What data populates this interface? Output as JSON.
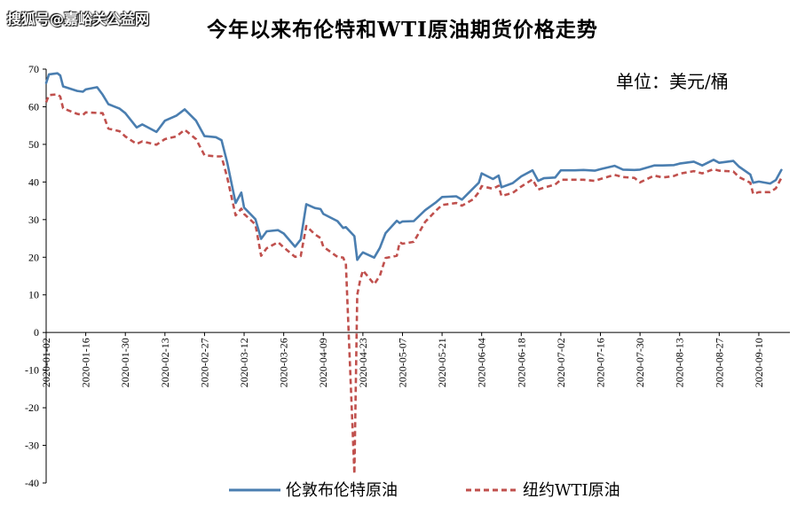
{
  "watermark": "搜狐号@嘉峪关公益网",
  "chart_data": {
    "type": "line",
    "title": "今年以来布伦特和WTI原油期货价格走势",
    "unit_label": "单位：美元/桶",
    "ylim": [
      -40,
      70
    ],
    "yticks": [
      -40,
      -30,
      -20,
      -10,
      0,
      10,
      20,
      30,
      40,
      50,
      60,
      70
    ],
    "xlim": [
      "2020-01-02",
      "2020-09-21"
    ],
    "xticks": [
      "2020-01-02",
      "2020-01-16",
      "2020-01-30",
      "2020-02-13",
      "2020-02-27",
      "2020-03-12",
      "2020-03-26",
      "2020-04-09",
      "2020-04-23",
      "2020-05-07",
      "2020-05-21",
      "2020-06-04",
      "2020-06-18",
      "2020-07-02",
      "2020-07-16",
      "2020-07-30",
      "2020-08-13",
      "2020-08-27",
      "2020-09-10"
    ],
    "grid": false,
    "legend_position": "bottom",
    "colors": {
      "brent": "#4a7eb0",
      "wti": "#c0504d"
    },
    "series": [
      {
        "name": "伦敦布伦特原油",
        "style": "solid",
        "points": [
          [
            "2020-01-02",
            66.3
          ],
          [
            "2020-01-03",
            68.6
          ],
          [
            "2020-01-06",
            68.9
          ],
          [
            "2020-01-07",
            68.3
          ],
          [
            "2020-01-08",
            65.4
          ],
          [
            "2020-01-13",
            64.2
          ],
          [
            "2020-01-15",
            64.0
          ],
          [
            "2020-01-16",
            64.6
          ],
          [
            "2020-01-20",
            65.2
          ],
          [
            "2020-01-22",
            63.2
          ],
          [
            "2020-01-24",
            60.7
          ],
          [
            "2020-01-28",
            59.5
          ],
          [
            "2020-01-30",
            58.3
          ],
          [
            "2020-02-03",
            54.5
          ],
          [
            "2020-02-05",
            55.3
          ],
          [
            "2020-02-10",
            53.3
          ],
          [
            "2020-02-13",
            56.3
          ],
          [
            "2020-02-17",
            57.6
          ],
          [
            "2020-02-20",
            59.3
          ],
          [
            "2020-02-24",
            56.3
          ],
          [
            "2020-02-27",
            52.2
          ],
          [
            "2020-03-02",
            51.9
          ],
          [
            "2020-03-04",
            51.1
          ],
          [
            "2020-03-06",
            45.3
          ],
          [
            "2020-03-09",
            34.4
          ],
          [
            "2020-03-11",
            37.2
          ],
          [
            "2020-03-12",
            33.2
          ],
          [
            "2020-03-16",
            30.1
          ],
          [
            "2020-03-18",
            24.9
          ],
          [
            "2020-03-20",
            26.9
          ],
          [
            "2020-03-24",
            27.2
          ],
          [
            "2020-03-26",
            26.3
          ],
          [
            "2020-03-30",
            22.8
          ],
          [
            "2020-04-01",
            24.7
          ],
          [
            "2020-04-03",
            34.1
          ],
          [
            "2020-04-06",
            33.1
          ],
          [
            "2020-04-08",
            32.8
          ],
          [
            "2020-04-09",
            31.5
          ],
          [
            "2020-04-14",
            29.6
          ],
          [
            "2020-04-16",
            27.8
          ],
          [
            "2020-04-17",
            28.0
          ],
          [
            "2020-04-20",
            25.6
          ],
          [
            "2020-04-21",
            19.3
          ],
          [
            "2020-04-22",
            20.4
          ],
          [
            "2020-04-23",
            21.3
          ],
          [
            "2020-04-27",
            19.9
          ],
          [
            "2020-04-29",
            22.5
          ],
          [
            "2020-05-01",
            26.4
          ],
          [
            "2020-05-05",
            29.7
          ],
          [
            "2020-05-06",
            29.1
          ],
          [
            "2020-05-07",
            29.5
          ],
          [
            "2020-05-11",
            29.6
          ],
          [
            "2020-05-15",
            32.5
          ],
          [
            "2020-05-19",
            34.7
          ],
          [
            "2020-05-21",
            36.0
          ],
          [
            "2020-05-26",
            36.2
          ],
          [
            "2020-05-28",
            35.3
          ],
          [
            "2020-06-01",
            38.3
          ],
          [
            "2020-06-03",
            39.8
          ],
          [
            "2020-06-04",
            42.3
          ],
          [
            "2020-06-08",
            40.8
          ],
          [
            "2020-06-10",
            41.7
          ],
          [
            "2020-06-11",
            38.6
          ],
          [
            "2020-06-15",
            39.7
          ],
          [
            "2020-06-18",
            41.5
          ],
          [
            "2020-06-22",
            43.1
          ],
          [
            "2020-06-24",
            40.3
          ],
          [
            "2020-06-26",
            41.0
          ],
          [
            "2020-06-30",
            41.2
          ],
          [
            "2020-07-02",
            43.1
          ],
          [
            "2020-07-07",
            43.1
          ],
          [
            "2020-07-10",
            43.2
          ],
          [
            "2020-07-14",
            43.0
          ],
          [
            "2020-07-16",
            43.4
          ],
          [
            "2020-07-21",
            44.3
          ],
          [
            "2020-07-24",
            43.3
          ],
          [
            "2020-07-28",
            43.2
          ],
          [
            "2020-07-30",
            43.3
          ],
          [
            "2020-08-04",
            44.4
          ],
          [
            "2020-08-07",
            44.4
          ],
          [
            "2020-08-11",
            44.5
          ],
          [
            "2020-08-13",
            44.9
          ],
          [
            "2020-08-18",
            45.4
          ],
          [
            "2020-08-21",
            44.4
          ],
          [
            "2020-08-25",
            45.9
          ],
          [
            "2020-08-27",
            45.1
          ],
          [
            "2020-09-01",
            45.6
          ],
          [
            "2020-09-03",
            44.1
          ],
          [
            "2020-09-07",
            42.0
          ],
          [
            "2020-09-08",
            39.8
          ],
          [
            "2020-09-10",
            40.1
          ],
          [
            "2020-09-14",
            39.6
          ],
          [
            "2020-09-16",
            40.5
          ],
          [
            "2020-09-18",
            43.2
          ]
        ]
      },
      {
        "name": "纽约WTI原油",
        "style": "dashed",
        "points": [
          [
            "2020-01-02",
            61.2
          ],
          [
            "2020-01-03",
            63.1
          ],
          [
            "2020-01-06",
            63.3
          ],
          [
            "2020-01-07",
            62.7
          ],
          [
            "2020-01-08",
            59.6
          ],
          [
            "2020-01-13",
            58.1
          ],
          [
            "2020-01-15",
            57.8
          ],
          [
            "2020-01-16",
            58.5
          ],
          [
            "2020-01-22",
            58.3
          ],
          [
            "2020-01-24",
            54.2
          ],
          [
            "2020-01-28",
            53.5
          ],
          [
            "2020-01-30",
            52.1
          ],
          [
            "2020-02-03",
            50.1
          ],
          [
            "2020-02-05",
            50.8
          ],
          [
            "2020-02-10",
            49.9
          ],
          [
            "2020-02-13",
            51.4
          ],
          [
            "2020-02-17",
            52.1
          ],
          [
            "2020-02-20",
            53.9
          ],
          [
            "2020-02-24",
            51.4
          ],
          [
            "2020-02-27",
            47.1
          ],
          [
            "2020-03-02",
            46.8
          ],
          [
            "2020-03-04",
            46.8
          ],
          [
            "2020-03-06",
            41.3
          ],
          [
            "2020-03-09",
            31.1
          ],
          [
            "2020-03-11",
            32.9
          ],
          [
            "2020-03-12",
            31.5
          ],
          [
            "2020-03-16",
            28.7
          ],
          [
            "2020-03-18",
            20.4
          ],
          [
            "2020-03-20",
            22.4
          ],
          [
            "2020-03-24",
            24.0
          ],
          [
            "2020-03-26",
            22.6
          ],
          [
            "2020-03-30",
            20.1
          ],
          [
            "2020-04-01",
            20.3
          ],
          [
            "2020-04-03",
            28.3
          ],
          [
            "2020-04-06",
            26.1
          ],
          [
            "2020-04-08",
            25.1
          ],
          [
            "2020-04-09",
            22.8
          ],
          [
            "2020-04-14",
            20.1
          ],
          [
            "2020-04-16",
            19.9
          ],
          [
            "2020-04-17",
            18.3
          ],
          [
            "2020-04-20",
            -37.6
          ],
          [
            "2020-04-21",
            10.0
          ],
          [
            "2020-04-22",
            13.8
          ],
          [
            "2020-04-23",
            16.5
          ],
          [
            "2020-04-27",
            12.8
          ],
          [
            "2020-04-29",
            15.1
          ],
          [
            "2020-05-01",
            19.8
          ],
          [
            "2020-05-05",
            20.4
          ],
          [
            "2020-05-06",
            24.0
          ],
          [
            "2020-05-07",
            23.6
          ],
          [
            "2020-05-11",
            24.1
          ],
          [
            "2020-05-15",
            29.4
          ],
          [
            "2020-05-19",
            32.5
          ],
          [
            "2020-05-21",
            33.9
          ],
          [
            "2020-05-26",
            34.4
          ],
          [
            "2020-05-28",
            33.7
          ],
          [
            "2020-06-01",
            35.4
          ],
          [
            "2020-06-03",
            37.3
          ],
          [
            "2020-06-04",
            38.9
          ],
          [
            "2020-06-08",
            38.2
          ],
          [
            "2020-06-10",
            39.0
          ],
          [
            "2020-06-11",
            36.3
          ],
          [
            "2020-06-15",
            37.1
          ],
          [
            "2020-06-18",
            38.8
          ],
          [
            "2020-06-22",
            40.7
          ],
          [
            "2020-06-24",
            38.0
          ],
          [
            "2020-06-26",
            38.5
          ],
          [
            "2020-06-30",
            39.3
          ],
          [
            "2020-07-02",
            40.6
          ],
          [
            "2020-07-07",
            40.6
          ],
          [
            "2020-07-10",
            40.6
          ],
          [
            "2020-07-14",
            40.3
          ],
          [
            "2020-07-16",
            40.8
          ],
          [
            "2020-07-21",
            41.9
          ],
          [
            "2020-07-24",
            41.3
          ],
          [
            "2020-07-28",
            41.1
          ],
          [
            "2020-07-30",
            39.9
          ],
          [
            "2020-08-04",
            41.7
          ],
          [
            "2020-08-07",
            41.2
          ],
          [
            "2020-08-11",
            41.6
          ],
          [
            "2020-08-13",
            42.2
          ],
          [
            "2020-08-18",
            42.9
          ],
          [
            "2020-08-21",
            42.3
          ],
          [
            "2020-08-25",
            43.4
          ],
          [
            "2020-08-27",
            43.0
          ],
          [
            "2020-09-01",
            42.8
          ],
          [
            "2020-09-03",
            41.3
          ],
          [
            "2020-09-07",
            39.8
          ],
          [
            "2020-09-08",
            36.8
          ],
          [
            "2020-09-10",
            37.3
          ],
          [
            "2020-09-14",
            37.3
          ],
          [
            "2020-09-16",
            38.3
          ],
          [
            "2020-09-18",
            41.1
          ]
        ]
      }
    ]
  }
}
